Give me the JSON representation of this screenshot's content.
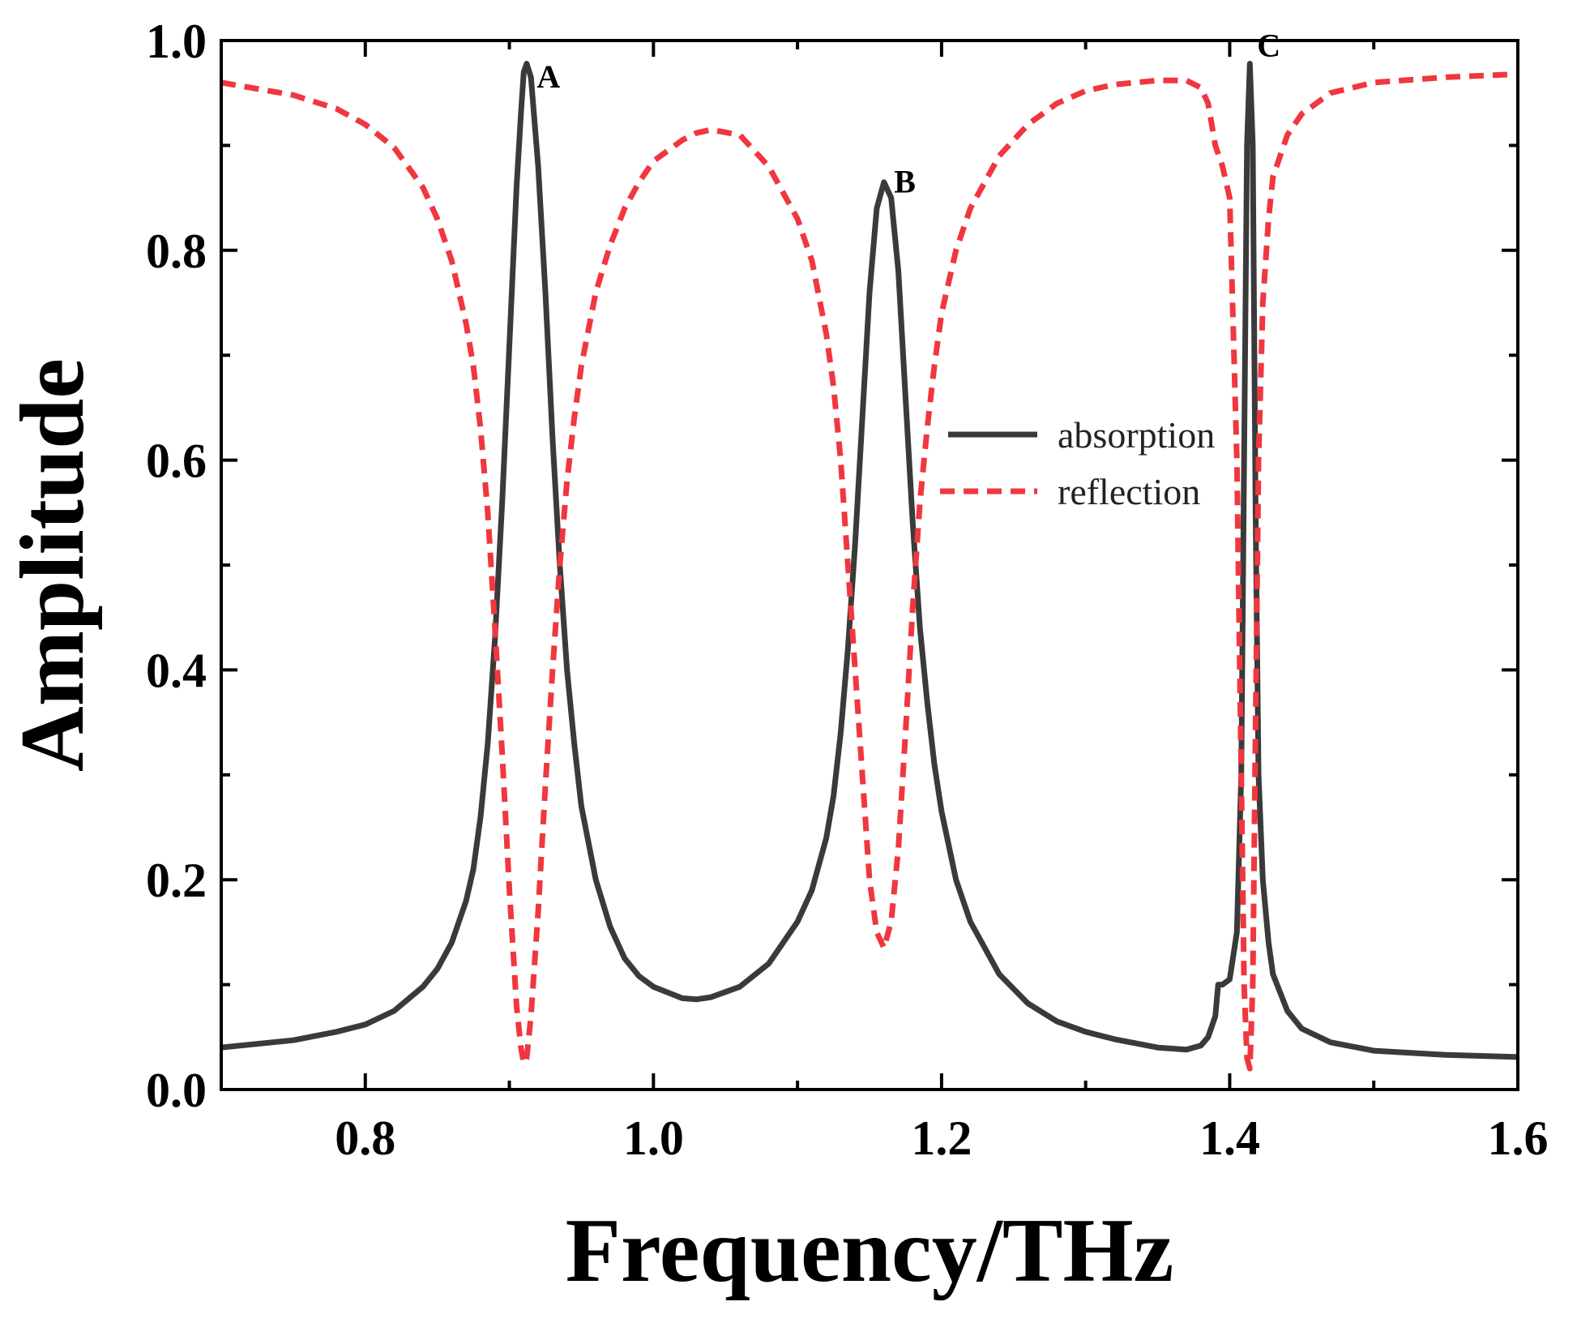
{
  "chart_data": {
    "type": "line",
    "title": "",
    "xlabel": "Frequency/THz",
    "ylabel": "Amplitude",
    "xlim": [
      0.7,
      1.6
    ],
    "ylim": [
      0.0,
      1.0
    ],
    "xticks": [
      0.8,
      1.0,
      1.2,
      1.4,
      1.6
    ],
    "xtick_labels": [
      "0.8",
      "1.0",
      "1.2",
      "1.4",
      "1.6"
    ],
    "yticks": [
      0.0,
      0.2,
      0.4,
      0.6,
      0.8,
      1.0
    ],
    "ytick_labels": [
      "0.0",
      "0.2",
      "0.4",
      "0.6",
      "0.8",
      "1.0"
    ],
    "legend_position": "center-right",
    "series": [
      {
        "name": "absorption",
        "color": "#3a3a3a",
        "style": "solid",
        "x": [
          0.7,
          0.75,
          0.78,
          0.8,
          0.82,
          0.84,
          0.85,
          0.86,
          0.87,
          0.875,
          0.88,
          0.885,
          0.89,
          0.895,
          0.9,
          0.905,
          0.908,
          0.91,
          0.912,
          0.915,
          0.92,
          0.925,
          0.93,
          0.935,
          0.94,
          0.945,
          0.95,
          0.96,
          0.97,
          0.98,
          0.99,
          1.0,
          1.02,
          1.03,
          1.04,
          1.06,
          1.08,
          1.1,
          1.11,
          1.12,
          1.125,
          1.13,
          1.135,
          1.14,
          1.145,
          1.15,
          1.155,
          1.16,
          1.165,
          1.17,
          1.175,
          1.18,
          1.185,
          1.19,
          1.195,
          1.2,
          1.21,
          1.22,
          1.24,
          1.26,
          1.28,
          1.3,
          1.32,
          1.35,
          1.37,
          1.38,
          1.385,
          1.39,
          1.392,
          1.395,
          1.4,
          1.405,
          1.408,
          1.41,
          1.412,
          1.414,
          1.416,
          1.418,
          1.42,
          1.423,
          1.427,
          1.43,
          1.44,
          1.45,
          1.47,
          1.5,
          1.55,
          1.6
        ],
        "y": [
          0.04,
          0.047,
          0.055,
          0.062,
          0.075,
          0.098,
          0.115,
          0.14,
          0.18,
          0.21,
          0.26,
          0.33,
          0.43,
          0.56,
          0.71,
          0.86,
          0.93,
          0.97,
          0.978,
          0.965,
          0.88,
          0.76,
          0.62,
          0.5,
          0.4,
          0.33,
          0.27,
          0.2,
          0.155,
          0.125,
          0.108,
          0.098,
          0.087,
          0.086,
          0.088,
          0.098,
          0.12,
          0.16,
          0.19,
          0.24,
          0.28,
          0.34,
          0.42,
          0.52,
          0.64,
          0.76,
          0.84,
          0.865,
          0.85,
          0.78,
          0.66,
          0.54,
          0.44,
          0.37,
          0.31,
          0.265,
          0.2,
          0.16,
          0.11,
          0.082,
          0.065,
          0.055,
          0.048,
          0.04,
          0.038,
          0.042,
          0.05,
          0.07,
          0.1,
          0.1,
          0.105,
          0.15,
          0.3,
          0.6,
          0.9,
          0.978,
          0.9,
          0.55,
          0.3,
          0.2,
          0.14,
          0.11,
          0.075,
          0.058,
          0.045,
          0.037,
          0.033,
          0.031
        ]
      },
      {
        "name": "reflection",
        "color": "#f0373f",
        "style": "dashed",
        "x": [
          0.7,
          0.75,
          0.78,
          0.8,
          0.82,
          0.84,
          0.85,
          0.86,
          0.87,
          0.875,
          0.88,
          0.885,
          0.89,
          0.895,
          0.9,
          0.905,
          0.908,
          0.91,
          0.912,
          0.915,
          0.92,
          0.925,
          0.93,
          0.935,
          0.94,
          0.945,
          0.95,
          0.96,
          0.97,
          0.98,
          0.99,
          1.0,
          1.02,
          1.03,
          1.04,
          1.06,
          1.08,
          1.1,
          1.11,
          1.12,
          1.125,
          1.13,
          1.135,
          1.14,
          1.145,
          1.15,
          1.155,
          1.16,
          1.165,
          1.17,
          1.175,
          1.18,
          1.185,
          1.19,
          1.195,
          1.2,
          1.21,
          1.22,
          1.24,
          1.26,
          1.28,
          1.3,
          1.32,
          1.35,
          1.37,
          1.38,
          1.385,
          1.39,
          1.395,
          1.4,
          1.405,
          1.408,
          1.41,
          1.412,
          1.414,
          1.416,
          1.418,
          1.42,
          1.423,
          1.427,
          1.43,
          1.44,
          1.45,
          1.47,
          1.5,
          1.55,
          1.6
        ],
        "y": [
          0.96,
          0.948,
          0.935,
          0.92,
          0.898,
          0.86,
          0.83,
          0.79,
          0.73,
          0.69,
          0.63,
          0.55,
          0.44,
          0.32,
          0.19,
          0.08,
          0.04,
          0.025,
          0.03,
          0.07,
          0.17,
          0.29,
          0.4,
          0.5,
          0.58,
          0.64,
          0.69,
          0.76,
          0.805,
          0.84,
          0.865,
          0.885,
          0.905,
          0.912,
          0.915,
          0.91,
          0.88,
          0.83,
          0.79,
          0.72,
          0.67,
          0.6,
          0.5,
          0.4,
          0.3,
          0.2,
          0.15,
          0.135,
          0.16,
          0.23,
          0.34,
          0.46,
          0.56,
          0.63,
          0.69,
          0.74,
          0.8,
          0.84,
          0.89,
          0.92,
          0.94,
          0.952,
          0.958,
          0.962,
          0.962,
          0.955,
          0.94,
          0.9,
          0.88,
          0.85,
          0.6,
          0.3,
          0.1,
          0.03,
          0.02,
          0.1,
          0.35,
          0.6,
          0.75,
          0.83,
          0.87,
          0.91,
          0.93,
          0.95,
          0.96,
          0.965,
          0.968
        ]
      }
    ],
    "annotations": [
      {
        "text": "A",
        "x": 0.919,
        "y": 0.955
      },
      {
        "text": "B",
        "x": 1.167,
        "y": 0.855
      },
      {
        "text": "C",
        "x": 1.419,
        "y": 0.985
      }
    ]
  }
}
